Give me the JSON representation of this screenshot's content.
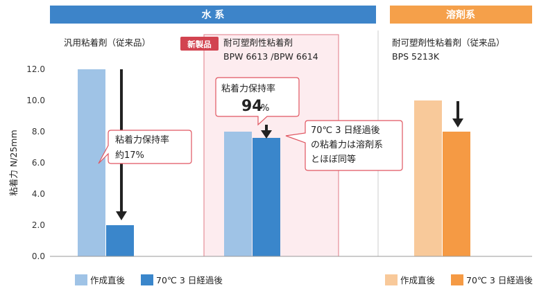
{
  "colors": {
    "water_header": "#3d84c9",
    "solvent_header": "#f5a04a",
    "water_initial": "#9fc3e6",
    "water_aged": "#3a86cb",
    "solvent_initial": "#f8c99a",
    "solvent_aged": "#f59a44",
    "highlight_fill": "#fdecef",
    "highlight_border": "#e07a84",
    "badge": "#d24450",
    "callout_border": "#e05560"
  },
  "headers": {
    "water": "水 系",
    "solvent": "溶剤系"
  },
  "badge": "新製品",
  "groups": [
    {
      "label": "汎用粘着剤（従来品）",
      "label2": ""
    },
    {
      "label": "耐可塑剤性粘着剤",
      "label2": "BPW 6613 /BPW 6614"
    },
    {
      "label": "耐可塑剤性粘着剤（従来品）",
      "label2": "BPS 5213K"
    }
  ],
  "callouts": {
    "c1_line1": "粘着力保持率",
    "c1_line2": "約17%",
    "c2_line1": "粘着力保持率",
    "c2_value": "94",
    "c2_unit": "%",
    "c3_line1": "70℃ 3 日経過後",
    "c3_line2": "の粘着力は溶剤系",
    "c3_line3": "とほぼ同等"
  },
  "legend": {
    "water_initial": "作成直後",
    "water_aged": "70℃ 3 日経過後",
    "solvent_initial": "作成直後",
    "solvent_aged": "70℃ 3 日経過後"
  },
  "chart_data": {
    "type": "bar",
    "ylabel": "粘着力 N/25mm",
    "ylim": [
      0,
      12
    ],
    "yticks": [
      "0.0",
      "2.0",
      "4.0",
      "6.0",
      "8.0",
      "10.0",
      "12.0"
    ],
    "categories": [
      "汎用粘着剤（従来品）",
      "耐可塑剤性粘着剤 BPW 6613 /BPW 6614",
      "耐可塑剤性粘着剤（従来品） BPS 5213K"
    ],
    "series": [
      {
        "name": "作成直後",
        "values": [
          12.0,
          8.0,
          10.0
        ]
      },
      {
        "name": "70℃ 3 日経過後",
        "values": [
          2.0,
          7.6,
          8.0
        ]
      }
    ],
    "grid": false,
    "legend_position": "bottom"
  }
}
